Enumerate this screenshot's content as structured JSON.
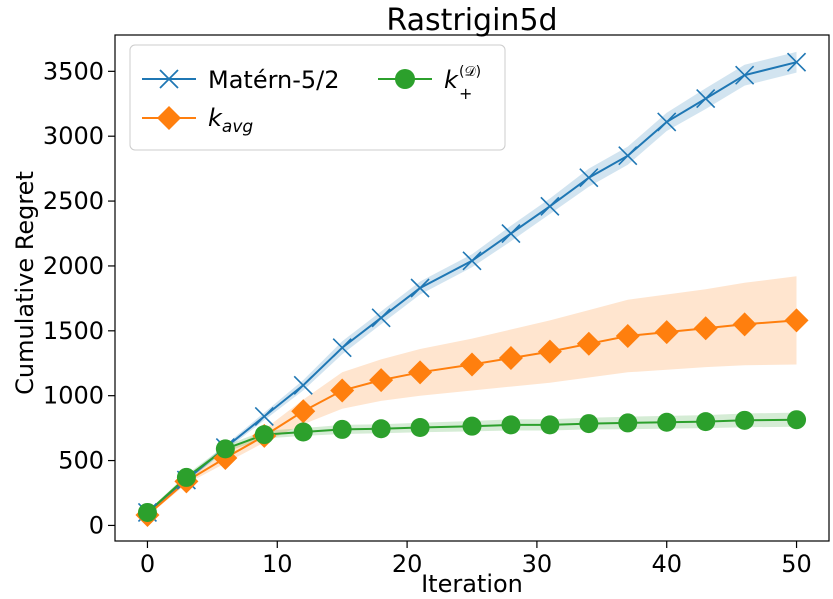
{
  "chart_data": {
    "type": "line",
    "title": "Rastrigin5d",
    "xlabel": "Iteration",
    "ylabel": "Cumulative Regret",
    "xlim": [
      -2.5,
      52.5
    ],
    "ylim": [
      -120,
      3780
    ],
    "xticks": [
      0,
      10,
      20,
      30,
      40,
      50
    ],
    "yticks": [
      0,
      500,
      1000,
      1500,
      2000,
      2500,
      3000,
      3500
    ],
    "grid": false,
    "legend_position": "top-left",
    "series": [
      {
        "name": "Matérn-5/2",
        "color": "#1f77b4",
        "marker": "x",
        "x": [
          0,
          3,
          6,
          9,
          12,
          15,
          18,
          21,
          25,
          28,
          31,
          34,
          37,
          40,
          43,
          46,
          50
        ],
        "y": [
          100,
          350,
          600,
          840,
          1080,
          1370,
          1600,
          1830,
          2040,
          2250,
          2460,
          2680,
          2850,
          3110,
          3290,
          3470,
          3570
        ],
        "lower": [
          90,
          330,
          580,
          810,
          1040,
          1320,
          1550,
          1780,
          1990,
          2190,
          2400,
          2610,
          2780,
          3040,
          3210,
          3390,
          3490
        ],
        "upper": [
          110,
          370,
          620,
          870,
          1120,
          1420,
          1650,
          1880,
          2090,
          2310,
          2520,
          2750,
          2920,
          3180,
          3370,
          3550,
          3650
        ]
      },
      {
        "name": "k_avg",
        "color": "#ff7f0e",
        "marker": "diamond",
        "x": [
          0,
          3,
          6,
          9,
          12,
          15,
          18,
          21,
          25,
          28,
          31,
          34,
          37,
          40,
          43,
          46,
          50
        ],
        "y": [
          80,
          340,
          520,
          690,
          880,
          1040,
          1120,
          1180,
          1240,
          1290,
          1340,
          1400,
          1460,
          1490,
          1520,
          1550,
          1580
        ],
        "lower": [
          70,
          320,
          480,
          640,
          780,
          900,
          960,
          1000,
          1040,
          1070,
          1100,
          1140,
          1180,
          1200,
          1220,
          1235,
          1240
        ],
        "upper": [
          90,
          360,
          560,
          740,
          970,
          1180,
          1280,
          1360,
          1440,
          1510,
          1580,
          1660,
          1740,
          1780,
          1820,
          1870,
          1920
        ]
      },
      {
        "name": "k_+^(D)",
        "color": "#2ca02c",
        "marker": "circle",
        "x": [
          0,
          3,
          6,
          9,
          12,
          15,
          18,
          21,
          25,
          28,
          31,
          34,
          37,
          40,
          43,
          46,
          50
        ],
        "y": [
          100,
          370,
          590,
          700,
          720,
          740,
          745,
          755,
          765,
          775,
          775,
          785,
          790,
          795,
          800,
          810,
          815
        ],
        "lower": [
          90,
          350,
          565,
          670,
          690,
          705,
          710,
          718,
          725,
          732,
          732,
          740,
          742,
          746,
          750,
          757,
          760
        ],
        "upper": [
          110,
          390,
          615,
          730,
          750,
          775,
          780,
          792,
          805,
          818,
          818,
          830,
          838,
          844,
          850,
          863,
          870
        ]
      }
    ],
    "legend_labels": {
      "matern": "Matérn-5/2",
      "kavg_base": "k",
      "kavg_sub": "avg",
      "kplus_base": "k",
      "kplus_sup": "(𝒟)",
      "kplus_sub": "+"
    }
  }
}
